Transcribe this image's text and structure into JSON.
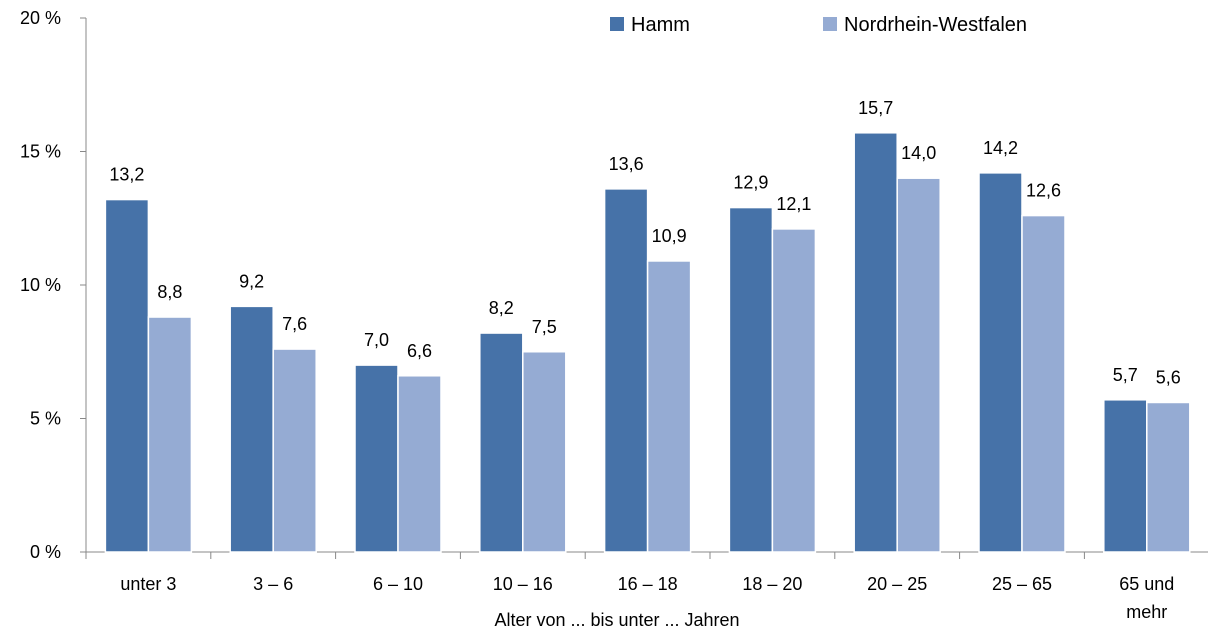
{
  "chart_data": {
    "type": "bar",
    "title": "",
    "xlabel": "Alter von ... bis unter ... Jahren",
    "ylabel": "",
    "ylim": [
      0,
      20
    ],
    "yticks": [
      0,
      5,
      10,
      15,
      20
    ],
    "ytick_labels": [
      "0 %",
      "5 %",
      "10 %",
      "15 %",
      "20 %"
    ],
    "grid": false,
    "legend_position": "top",
    "categories": [
      [
        "unter 3"
      ],
      [
        "3 –  6"
      ],
      [
        "6 – 10"
      ],
      [
        "10 – 16"
      ],
      [
        "16 – 18"
      ],
      [
        "18 – 20"
      ],
      [
        "20 – 25"
      ],
      [
        "25 – 65"
      ],
      [
        "65 und",
        "mehr"
      ]
    ],
    "series": [
      {
        "name": "Hamm",
        "color": "#4672A8",
        "values": [
          13.2,
          9.2,
          7.0,
          8.2,
          13.6,
          12.9,
          15.7,
          14.2,
          5.7
        ],
        "labels": [
          "13,2",
          "9,2",
          "7,0",
          "8,2",
          "13,6",
          "12,9",
          "15,7",
          "14,2",
          "5,7"
        ]
      },
      {
        "name": "Nordrhein-Westfalen",
        "color": "#95ABD3",
        "values": [
          8.8,
          7.6,
          6.6,
          7.5,
          10.9,
          12.1,
          14.0,
          12.6,
          5.6
        ],
        "labels": [
          "8,8",
          "7,6",
          "6,6",
          "7,5",
          "10,9",
          "12,1",
          "14,0",
          "12,6",
          "5,6"
        ]
      }
    ]
  }
}
